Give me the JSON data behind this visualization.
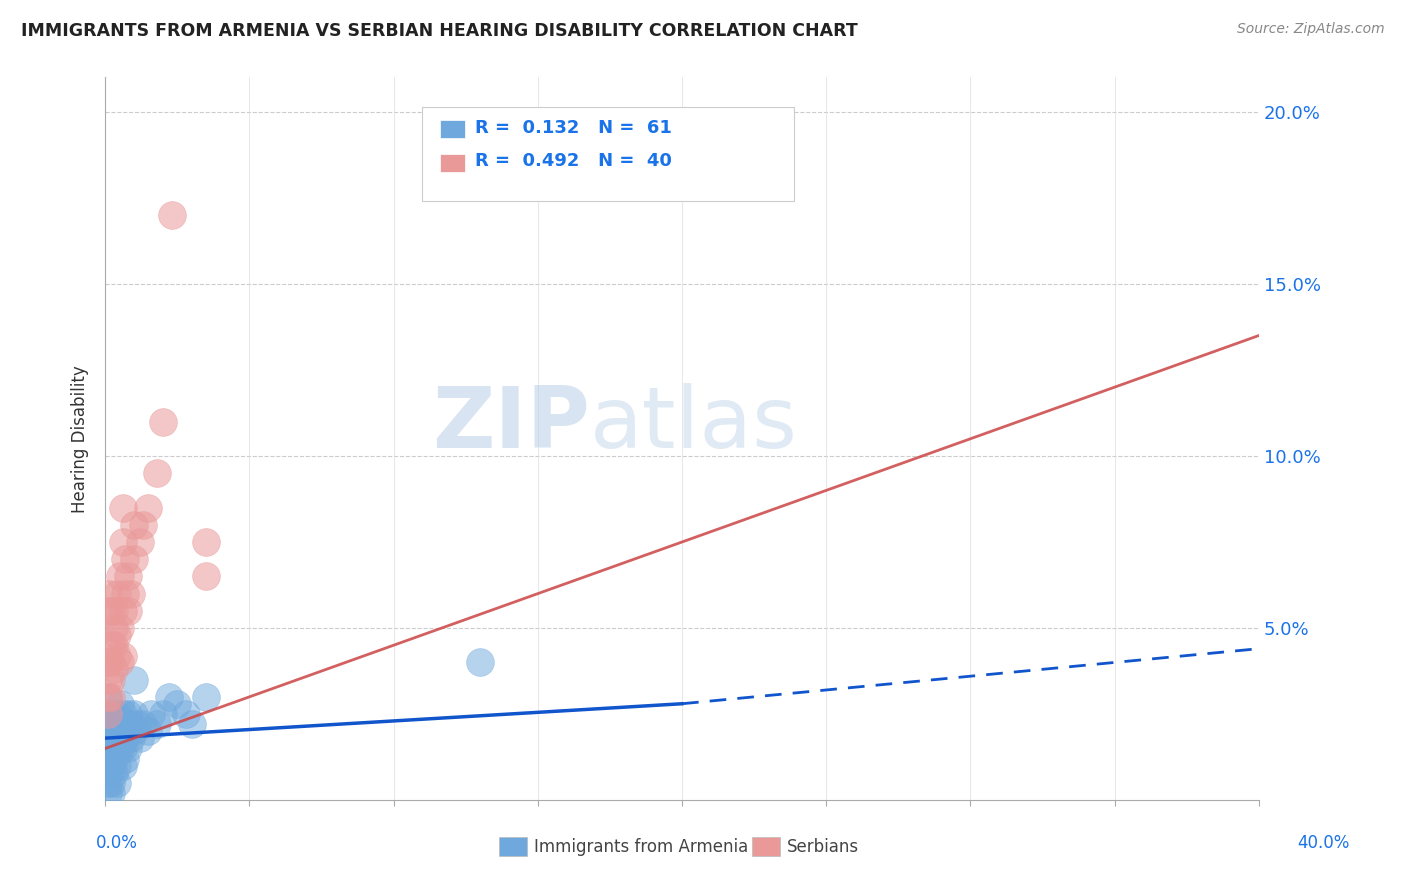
{
  "title": "IMMIGRANTS FROM ARMENIA VS SERBIAN HEARING DISABILITY CORRELATION CHART",
  "source": "Source: ZipAtlas.com",
  "ylabel": "Hearing Disability",
  "xlim": [
    0.0,
    0.4
  ],
  "ylim": [
    0.0,
    0.21
  ],
  "yticks": [
    0.0,
    0.05,
    0.1,
    0.15,
    0.2
  ],
  "ytick_labels": [
    "",
    "5.0%",
    "10.0%",
    "15.0%",
    "20.0%"
  ],
  "armenia_color": "#6fa8dc",
  "serbia_color": "#ea9999",
  "armenia_line_color": "#1155cc",
  "serbia_line_color": "#cc4444",
  "background_color": "#ffffff",
  "watermark_zip": "ZIP",
  "watermark_atlas": "atlas",
  "armenia_R": 0.132,
  "armenia_N": 61,
  "serbia_R": 0.492,
  "serbia_N": 40,
  "armenia_line_solid": [
    0.0,
    0.018,
    0.2,
    0.028
  ],
  "armenia_line_dash": [
    0.2,
    0.028,
    0.4,
    0.044
  ],
  "serbia_line": [
    0.0,
    0.015,
    0.4,
    0.135
  ],
  "armenia_points": [
    [
      0.001,
      0.02
    ],
    [
      0.001,
      0.025
    ],
    [
      0.001,
      0.015
    ],
    [
      0.001,
      0.01
    ],
    [
      0.001,
      0.005
    ],
    [
      0.001,
      0.03
    ],
    [
      0.001,
      0.018
    ],
    [
      0.001,
      0.022
    ],
    [
      0.001,
      0.012
    ],
    [
      0.001,
      0.008
    ],
    [
      0.002,
      0.02
    ],
    [
      0.002,
      0.015
    ],
    [
      0.002,
      0.025
    ],
    [
      0.002,
      0.01
    ],
    [
      0.002,
      0.018
    ],
    [
      0.002,
      0.005
    ],
    [
      0.003,
      0.022
    ],
    [
      0.003,
      0.018
    ],
    [
      0.003,
      0.012
    ],
    [
      0.003,
      0.008
    ],
    [
      0.003,
      0.025
    ],
    [
      0.003,
      0.015
    ],
    [
      0.004,
      0.02
    ],
    [
      0.004,
      0.015
    ],
    [
      0.004,
      0.025
    ],
    [
      0.004,
      0.01
    ],
    [
      0.004,
      0.005
    ],
    [
      0.005,
      0.022
    ],
    [
      0.005,
      0.018
    ],
    [
      0.005,
      0.028
    ],
    [
      0.005,
      0.015
    ],
    [
      0.006,
      0.02
    ],
    [
      0.006,
      0.015
    ],
    [
      0.006,
      0.025
    ],
    [
      0.006,
      0.01
    ],
    [
      0.007,
      0.022
    ],
    [
      0.007,
      0.018
    ],
    [
      0.007,
      0.012
    ],
    [
      0.008,
      0.02
    ],
    [
      0.008,
      0.025
    ],
    [
      0.008,
      0.015
    ],
    [
      0.009,
      0.022
    ],
    [
      0.009,
      0.018
    ],
    [
      0.01,
      0.02
    ],
    [
      0.01,
      0.025
    ],
    [
      0.01,
      0.035
    ],
    [
      0.011,
      0.022
    ],
    [
      0.012,
      0.018
    ],
    [
      0.013,
      0.022
    ],
    [
      0.015,
      0.02
    ],
    [
      0.016,
      0.025
    ],
    [
      0.018,
      0.022
    ],
    [
      0.02,
      0.025
    ],
    [
      0.022,
      0.03
    ],
    [
      0.025,
      0.028
    ],
    [
      0.028,
      0.025
    ],
    [
      0.03,
      0.022
    ],
    [
      0.035,
      0.03
    ],
    [
      0.001,
      0.002
    ],
    [
      0.002,
      0.002
    ],
    [
      0.13,
      0.04
    ]
  ],
  "serbia_points": [
    [
      0.001,
      0.025
    ],
    [
      0.001,
      0.03
    ],
    [
      0.001,
      0.035
    ],
    [
      0.001,
      0.04
    ],
    [
      0.001,
      0.055
    ],
    [
      0.001,
      0.06
    ],
    [
      0.002,
      0.03
    ],
    [
      0.002,
      0.035
    ],
    [
      0.002,
      0.04
    ],
    [
      0.002,
      0.045
    ],
    [
      0.002,
      0.055
    ],
    [
      0.003,
      0.038
    ],
    [
      0.003,
      0.045
    ],
    [
      0.003,
      0.05
    ],
    [
      0.003,
      0.055
    ],
    [
      0.004,
      0.042
    ],
    [
      0.004,
      0.048
    ],
    [
      0.004,
      0.06
    ],
    [
      0.005,
      0.04
    ],
    [
      0.005,
      0.05
    ],
    [
      0.005,
      0.065
    ],
    [
      0.006,
      0.042
    ],
    [
      0.006,
      0.055
    ],
    [
      0.006,
      0.075
    ],
    [
      0.006,
      0.085
    ],
    [
      0.007,
      0.06
    ],
    [
      0.007,
      0.07
    ],
    [
      0.008,
      0.055
    ],
    [
      0.008,
      0.065
    ],
    [
      0.009,
      0.06
    ],
    [
      0.01,
      0.07
    ],
    [
      0.01,
      0.08
    ],
    [
      0.012,
      0.075
    ],
    [
      0.013,
      0.08
    ],
    [
      0.015,
      0.085
    ],
    [
      0.018,
      0.095
    ],
    [
      0.023,
      0.17
    ],
    [
      0.02,
      0.11
    ],
    [
      0.035,
      0.065
    ],
    [
      0.035,
      0.075
    ]
  ]
}
